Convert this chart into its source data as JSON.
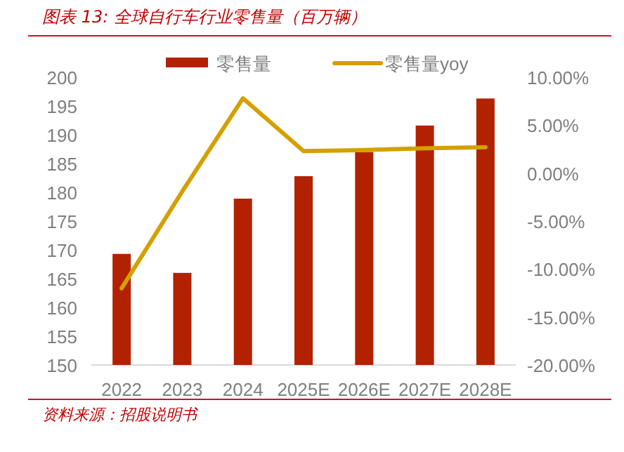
{
  "chart_data": {
    "type": "bar",
    "title": "图表 13: 全球自行车行业零售量（百万辆）",
    "categories": [
      "2022",
      "2023",
      "2024",
      "2025E",
      "2026E",
      "2027E",
      "2028E"
    ],
    "series": [
      {
        "name": "零售量",
        "color": "#b22200",
        "values": [
          169.3,
          166.0,
          178.9,
          182.8,
          187.0,
          191.6,
          196.3
        ]
      },
      {
        "name": "零售量yoy",
        "type": "line",
        "axis": "y2",
        "color": "#d4a000",
        "values": [
          -12.0,
          -1.9,
          7.8,
          2.3,
          2.4,
          2.6,
          2.7
        ]
      }
    ],
    "ylim": [
      150,
      200
    ],
    "yticks": [
      150,
      155,
      160,
      165,
      170,
      175,
      180,
      185,
      190,
      195,
      200
    ],
    "y2lim": [
      -20,
      10
    ],
    "y2ticks": [
      {
        "value": -20,
        "label": "-20.00%"
      },
      {
        "value": -15,
        "label": "-15.00%"
      },
      {
        "value": -10,
        "label": "-10.00%"
      },
      {
        "value": -5,
        "label": "-5.00%"
      },
      {
        "value": 0,
        "label": "0.00%"
      },
      {
        "value": 5,
        "label": "5.00%"
      },
      {
        "value": 10,
        "label": "10.00%"
      }
    ],
    "legend": "top",
    "annotations": [
      "资料来源：招股说明书"
    ]
  }
}
